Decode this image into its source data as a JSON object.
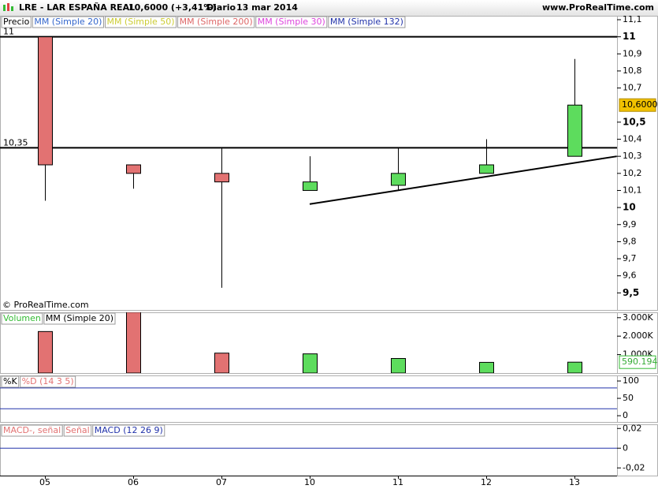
{
  "header": {
    "title": "LRE - LAR ESPAÑA REAL",
    "price": "10,6000 (+3,41%)",
    "period": "Diario",
    "date": "13 mar 2014",
    "site": "www.ProRealTime.com"
  },
  "chart_data": [
    {
      "type": "candlestick",
      "legend": [
        {
          "name": "Precio",
          "color": "#000000"
        },
        {
          "name": "MM (Simple 20)",
          "color": "#3366cc"
        },
        {
          "name": "MM (Simple 50)",
          "color": "#cccc33"
        },
        {
          "name": "MM (Simple 200)",
          "color": "#dd6666"
        },
        {
          "name": "MM (Simple 30)",
          "color": "#dd44dd"
        },
        {
          "name": "MM (Simple 132)",
          "color": "#2233aa"
        }
      ],
      "categories": [
        "05",
        "06",
        "07",
        "10",
        "11",
        "12",
        "13"
      ],
      "series": [
        {
          "name": "Precio",
          "up_color": "#5ddc5d",
          "down_color": "#e27272",
          "open": [
            11,
            10.25,
            10.2,
            10.1,
            10.13,
            10.2,
            10.3
          ],
          "high": [
            11,
            10.25,
            10.35,
            10.3,
            10.35,
            10.4,
            10.87
          ],
          "low": [
            10.04,
            10.11,
            9.53,
            10.1,
            10.1,
            10.2,
            10.3
          ],
          "close": [
            10.25,
            10.2,
            10.15,
            10.15,
            10.2,
            10.25,
            10.6
          ]
        }
      ],
      "ylim": [
        9.4,
        11.1
      ],
      "yticks": [
        {
          "value": 11.1,
          "label": "11,1"
        },
        11,
        {
          "value": 10.9,
          "label": "10,9"
        },
        {
          "value": 10.8,
          "label": "10,8"
        },
        {
          "value": 10.7,
          "label": "10,7"
        },
        {
          "value": 10.5,
          "label": "10,5"
        },
        {
          "value": 10.4,
          "label": "10,4"
        },
        {
          "value": 10.3,
          "label": "10,3"
        },
        {
          "value": 10.2,
          "label": "10,2"
        },
        {
          "value": 10.1,
          "label": "10,1"
        },
        10,
        {
          "value": 9.9,
          "label": "9,9"
        },
        {
          "value": 9.8,
          "label": "9,8"
        },
        {
          "value": 9.7,
          "label": "9,7"
        },
        {
          "value": 9.6,
          "label": "9,6"
        },
        {
          "value": 9.5,
          "label": "9,5"
        }
      ],
      "hlines": [
        {
          "value": 11,
          "label": "11"
        },
        {
          "value": 10.35,
          "label": "10,35"
        }
      ],
      "trendline": {
        "x": [
          3,
          6.48
        ],
        "y": [
          10.02,
          10.3
        ]
      },
      "last_price": {
        "value": 10.6,
        "label": "10,6000"
      },
      "watermark": "© ProRealTime.com"
    },
    {
      "type": "bar",
      "legend": [
        {
          "name": "Volumen",
          "color": "#33bb33"
        },
        {
          "name": "MM (Simple 20)",
          "color": "#000000"
        }
      ],
      "values": [
        2250,
        3300,
        1080,
        1040,
        790,
        580,
        590.194
      ],
      "colors": [
        "#e27272",
        "#e27272",
        "#e27272",
        "#5ddc5d",
        "#5ddc5d",
        "#5ddc5d",
        "#5ddc5d"
      ],
      "ylim": [
        0,
        3290
      ],
      "yticks": [
        {
          "value": 3000,
          "label": "3.000K"
        },
        {
          "value": 2000,
          "label": "2.000K"
        },
        {
          "value": 1000,
          "label": "1.000K"
        }
      ],
      "last_value": {
        "value": 590.194,
        "label": "590.194"
      }
    },
    {
      "type": "stochastic",
      "legend": [
        {
          "name": "%K",
          "color": "#000000"
        },
        {
          "name": "%D (14 3 5)",
          "color": "#e27272"
        }
      ],
      "levels": [
        80,
        20
      ],
      "level_color": "#2233aa",
      "ylim": [
        -18,
        116
      ],
      "yticks": [
        100,
        50,
        0
      ]
    },
    {
      "type": "macd",
      "legend": [
        {
          "name": "MACD-, señal",
          "color": "#e27272"
        },
        {
          "name": "Señal",
          "color": "#e27272"
        },
        {
          "name": "MACD (12 26 9)",
          "color": "#2233aa"
        }
      ],
      "levels": [
        0
      ],
      "level_color": "#2233aa",
      "ylim": [
        -0.0278,
        0.0242
      ],
      "yticks": [
        {
          "value": 0.02,
          "label": "0,02"
        },
        0,
        {
          "value": -0.02,
          "label": "-0,02"
        }
      ]
    }
  ]
}
